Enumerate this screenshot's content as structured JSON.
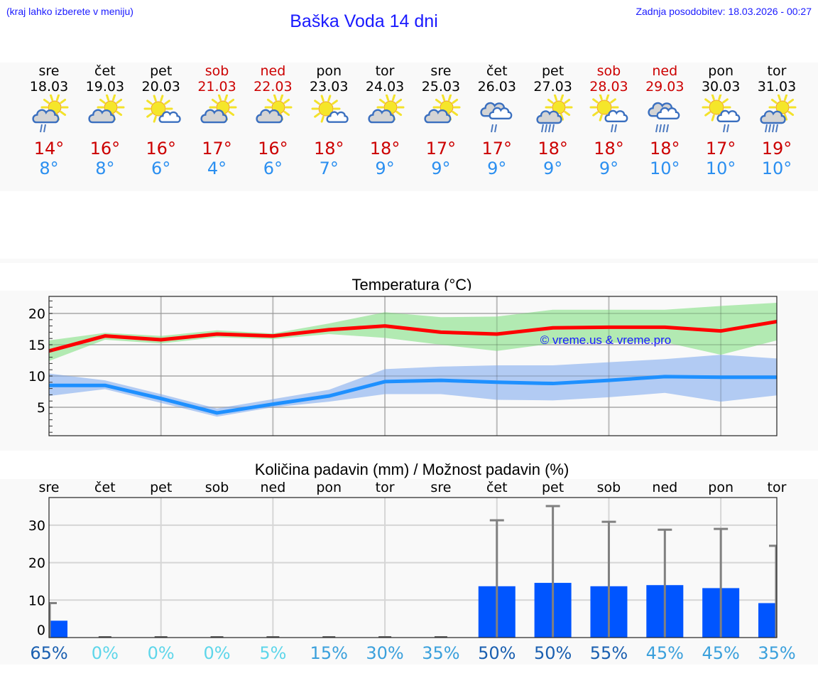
{
  "header": {
    "hint": "(kraj lahko izberete v meniju)",
    "title": "Baška Voda 14 dni",
    "updated": "Zadnja posodobitev: 18.03.2026 - 00:27"
  },
  "colors": {
    "link_blue": "#1a1aff",
    "weekend_red": "#cc0000",
    "max_red": "#ff0000",
    "min_blue": "#1e90ff",
    "max_band": "#aee9ae",
    "min_band": "#aec8f2",
    "bar_blue": "#0055ff",
    "errbar_gray": "#808080"
  },
  "days": [
    {
      "name": "sre",
      "date": "18.03",
      "weekend": false,
      "icon": "partly-cloudy-light-rain-icon",
      "tmax": "14°",
      "tmin": "8°"
    },
    {
      "name": "čet",
      "date": "19.03",
      "weekend": false,
      "icon": "partly-cloudy-icon",
      "tmax": "16°",
      "tmin": "8°"
    },
    {
      "name": "pet",
      "date": "20.03",
      "weekend": false,
      "icon": "mostly-sunny-icon",
      "tmax": "16°",
      "tmin": "6°"
    },
    {
      "name": "sob",
      "date": "21.03",
      "weekend": true,
      "icon": "partly-cloudy-icon",
      "tmax": "17°",
      "tmin": "4°"
    },
    {
      "name": "ned",
      "date": "22.03",
      "weekend": true,
      "icon": "partly-cloudy-icon",
      "tmax": "16°",
      "tmin": "6°"
    },
    {
      "name": "pon",
      "date": "23.03",
      "weekend": false,
      "icon": "mostly-sunny-icon",
      "tmax": "18°",
      "tmin": "7°"
    },
    {
      "name": "tor",
      "date": "24.03",
      "weekend": false,
      "icon": "partly-cloudy-icon",
      "tmax": "18°",
      "tmin": "9°"
    },
    {
      "name": "sre",
      "date": "25.03",
      "weekend": false,
      "icon": "partly-cloudy-icon",
      "tmax": "17°",
      "tmin": "9°"
    },
    {
      "name": "čet",
      "date": "26.03",
      "weekend": false,
      "icon": "cloudy-light-rain-icon",
      "tmax": "17°",
      "tmin": "9°"
    },
    {
      "name": "pet",
      "date": "27.03",
      "weekend": false,
      "icon": "partly-cloudy-rain-icon",
      "tmax": "18°",
      "tmin": "9°"
    },
    {
      "name": "sob",
      "date": "28.03",
      "weekend": true,
      "icon": "sunny-light-rain-icon",
      "tmax": "18°",
      "tmin": "9°"
    },
    {
      "name": "ned",
      "date": "29.03",
      "weekend": true,
      "icon": "cloudy-rain-icon",
      "tmax": "18°",
      "tmin": "10°"
    },
    {
      "name": "pon",
      "date": "30.03",
      "weekend": false,
      "icon": "sunny-light-rain-icon",
      "tmax": "17°",
      "tmin": "10°"
    },
    {
      "name": "tor",
      "date": "31.03",
      "weekend": false,
      "icon": "partly-cloudy-rain-icon",
      "tmax": "19°",
      "tmin": "10°"
    }
  ],
  "chart_data": [
    {
      "type": "line",
      "title": "Temperatura (°C)",
      "xlabel": "",
      "ylabel": "",
      "x": [
        "18.03",
        "19.03",
        "20.03",
        "21.03",
        "22.03",
        "23.03",
        "24.03",
        "25.03",
        "26.03",
        "27.03",
        "28.03",
        "29.03",
        "30.03",
        "31.03"
      ],
      "ylim": [
        0.5,
        22.7
      ],
      "yticks": [
        5,
        10,
        15,
        20
      ],
      "grid": true,
      "watermark": "© vreme.us & vreme.pro",
      "series": [
        {
          "name": "max",
          "color": "#ff0000",
          "values": [
            14.0,
            16.4,
            15.8,
            16.7,
            16.4,
            17.4,
            18.0,
            17.0,
            16.7,
            17.7,
            17.8,
            17.8,
            17.2,
            18.7
          ]
        },
        {
          "name": "max_band_high",
          "color": "#aee9ae",
          "values": [
            15.7,
            16.9,
            16.4,
            17.3,
            16.8,
            18.4,
            20.2,
            19.4,
            19.5,
            20.6,
            20.6,
            20.6,
            21.2,
            21.7
          ]
        },
        {
          "name": "max_band_low",
          "color": "#aee9ae",
          "values": [
            12.4,
            15.8,
            15.2,
            16.2,
            15.9,
            16.7,
            16.1,
            15.0,
            14.0,
            15.2,
            15.3,
            15.4,
            13.4,
            15.7
          ]
        },
        {
          "name": "min",
          "color": "#1e90ff",
          "values": [
            8.5,
            8.5,
            6.4,
            4.1,
            5.5,
            6.8,
            9.1,
            9.3,
            9.0,
            8.8,
            9.3,
            9.9,
            9.8,
            9.8
          ]
        },
        {
          "name": "min_band_high",
          "color": "#aec8f2",
          "values": [
            10.4,
            9.3,
            7.1,
            4.8,
            6.3,
            7.8,
            11.1,
            11.5,
            11.7,
            11.7,
            12.2,
            12.7,
            13.4,
            12.8
          ]
        },
        {
          "name": "min_band_low",
          "color": "#aec8f2",
          "values": [
            6.8,
            7.9,
            5.7,
            3.5,
            5.0,
            5.9,
            7.1,
            7.1,
            6.2,
            6.1,
            6.6,
            7.3,
            5.9,
            6.9
          ]
        }
      ]
    },
    {
      "type": "bar",
      "title": "Količina padavin (mm) / Možnost padavin (%)",
      "xlabel": "",
      "ylabel": "",
      "categories": [
        "sre",
        "čet",
        "pet",
        "sob",
        "ned",
        "pon",
        "tor",
        "sre",
        "čet",
        "pet",
        "sob",
        "ned",
        "pon",
        "tor"
      ],
      "ylim": [
        0,
        37
      ],
      "yticks": [
        0,
        10,
        20,
        30
      ],
      "grid": true,
      "series": [
        {
          "name": "precip_mm",
          "color": "#0055ff",
          "values": [
            4.5,
            0,
            0,
            0,
            0,
            0,
            0,
            0,
            13.7,
            14.6,
            13.7,
            14.0,
            13.2,
            9.2
          ]
        },
        {
          "name": "precip_max_mm",
          "color": "#808080",
          "values": [
            9.2,
            0.1,
            0.1,
            0.1,
            0.1,
            0.1,
            0.1,
            0.1,
            31.3,
            35.1,
            30.9,
            28.8,
            29.0,
            24.5
          ]
        }
      ],
      "probability": [
        "65%",
        "0%",
        "0%",
        "0%",
        "5%",
        "15%",
        "30%",
        "35%",
        "50%",
        "50%",
        "55%",
        "45%",
        "45%",
        "35%"
      ],
      "probability_colors": [
        "#1a5fb0",
        "#5ed6ea",
        "#5ed6ea",
        "#5ed6ea",
        "#5ed6ea",
        "#3aa0dc",
        "#3aa0dc",
        "#3aa0dc",
        "#1a5fb0",
        "#1a5fb0",
        "#1a5fb0",
        "#3aa0dc",
        "#3aa0dc",
        "#3aa0dc"
      ]
    }
  ]
}
